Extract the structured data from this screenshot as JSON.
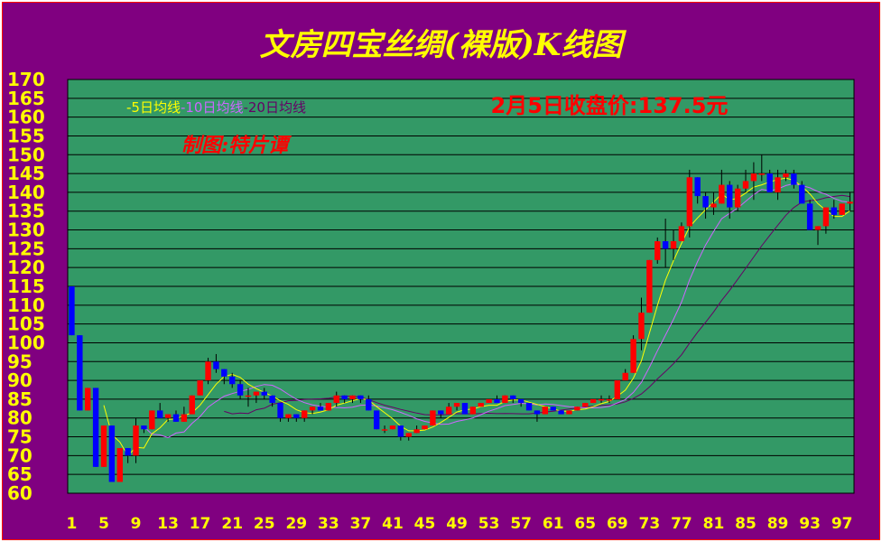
{
  "window": {
    "title": "文房四宝丝绸(裸版)K线图"
  },
  "colors": {
    "background": "#800080",
    "plot": "#339966",
    "up": "#ff0000",
    "down": "#0000ff",
    "ma5": "#ffff00",
    "ma10": "#cc66ff",
    "ma20": "#660066",
    "text": "#ffff00"
  },
  "chart_data": {
    "type": "candlestick",
    "title": "文房四宝丝绸(裸版)K线图",
    "subtitle": "2月5日收盘价:137.5元",
    "author": "制图:特片谭",
    "legend": {
      "ma5": "-5日均线",
      "ma10": "-10日均线",
      "ma20": "-20日均线",
      "placement": "top-left"
    },
    "ylim": [
      60,
      170
    ],
    "y_ticks": [
      "170",
      "165",
      "160",
      "155",
      "150",
      "145",
      "140",
      "135",
      "130",
      "125",
      "120",
      "115",
      "110",
      "105",
      "100",
      "95",
      "90",
      "85",
      "80",
      "75",
      "70",
      "65",
      "60"
    ],
    "x_ticks": [
      "1",
      "5",
      "9",
      "13",
      "17",
      "21",
      "25",
      "29",
      "33",
      "37",
      "41",
      "45",
      "49",
      "53",
      "57",
      "61",
      "65",
      "69",
      "73",
      "77",
      "81",
      "85",
      "89",
      "93",
      "97"
    ],
    "grid": true,
    "ohlc": [
      [
        115,
        115,
        102,
        102
      ],
      [
        102,
        102,
        82,
        82
      ],
      [
        82,
        88,
        82,
        88
      ],
      [
        88,
        88,
        67,
        67
      ],
      [
        67,
        78,
        67,
        78
      ],
      [
        78,
        78,
        63,
        63
      ],
      [
        63,
        72,
        63,
        72
      ],
      [
        72,
        72,
        68,
        70
      ],
      [
        70,
        80,
        68,
        78
      ],
      [
        78,
        78,
        76,
        77
      ],
      [
        77,
        82,
        77,
        82
      ],
      [
        82,
        84,
        80,
        80
      ],
      [
        80,
        81,
        79,
        81
      ],
      [
        81,
        82,
        79,
        79
      ],
      [
        79,
        83,
        79,
        81
      ],
      [
        81,
        86,
        81,
        86
      ],
      [
        86,
        90,
        86,
        90
      ],
      [
        90,
        96,
        89,
        95
      ],
      [
        95,
        97,
        92,
        93
      ],
      [
        93,
        93,
        89,
        91
      ],
      [
        91,
        92,
        88,
        89
      ],
      [
        89,
        90,
        85,
        86
      ],
      [
        86,
        88,
        83,
        86
      ],
      [
        86,
        87,
        84,
        87
      ],
      [
        87,
        88,
        85,
        86
      ],
      [
        86,
        86,
        83,
        84
      ],
      [
        84,
        84,
        79,
        80
      ],
      [
        80,
        81,
        79,
        81
      ],
      [
        81,
        81,
        79,
        80
      ],
      [
        80,
        82,
        79,
        82
      ],
      [
        82,
        83,
        81,
        83
      ],
      [
        83,
        84,
        82,
        82
      ],
      [
        82,
        84,
        82,
        84
      ],
      [
        84,
        87,
        83,
        86
      ],
      [
        86,
        86,
        84,
        85
      ],
      [
        85,
        86,
        84,
        86
      ],
      [
        86,
        86,
        84,
        85
      ],
      [
        85,
        86,
        82,
        82
      ],
      [
        82,
        82,
        77,
        77
      ],
      [
        77,
        78,
        76,
        77
      ],
      [
        77,
        78,
        77,
        78
      ],
      [
        78,
        78,
        74,
        75
      ],
      [
        75,
        76,
        74,
        76
      ],
      [
        76,
        78,
        76,
        77
      ],
      [
        77,
        78,
        77,
        78
      ],
      [
        78,
        82,
        78,
        82
      ],
      [
        82,
        82,
        80,
        81
      ],
      [
        81,
        84,
        81,
        83
      ],
      [
        83,
        84,
        82,
        84
      ],
      [
        84,
        84,
        81,
        81
      ],
      [
        81,
        83,
        81,
        83
      ],
      [
        83,
        84,
        83,
        84
      ],
      [
        84,
        85,
        84,
        85
      ],
      [
        85,
        86,
        84,
        84
      ],
      [
        84,
        86,
        84,
        86
      ],
      [
        86,
        86,
        84,
        85
      ],
      [
        85,
        85,
        83,
        84
      ],
      [
        84,
        84,
        82,
        82
      ],
      [
        82,
        82,
        79,
        81
      ],
      [
        81,
        83,
        81,
        83
      ],
      [
        83,
        83,
        82,
        82
      ],
      [
        82,
        82,
        81,
        81
      ],
      [
        81,
        82,
        81,
        82
      ],
      [
        82,
        83,
        82,
        83
      ],
      [
        83,
        84,
        83,
        84
      ],
      [
        84,
        85,
        84,
        85
      ],
      [
        85,
        86,
        84,
        85
      ],
      [
        85,
        86,
        84,
        85
      ],
      [
        85,
        90,
        85,
        90
      ],
      [
        90,
        93,
        90,
        92
      ],
      [
        92,
        102,
        92,
        101
      ],
      [
        101,
        112,
        98,
        108
      ],
      [
        108,
        122,
        108,
        122
      ],
      [
        122,
        128,
        121,
        127
      ],
      [
        127,
        133,
        120,
        125
      ],
      [
        125,
        130,
        122,
        127
      ],
      [
        127,
        132,
        127,
        131
      ],
      [
        131,
        146,
        128,
        144
      ],
      [
        144,
        144,
        137,
        139
      ],
      [
        139,
        140,
        133,
        136
      ],
      [
        136,
        140,
        134,
        137
      ],
      [
        137,
        146,
        137,
        142
      ],
      [
        142,
        143,
        133,
        136
      ],
      [
        136,
        142,
        135,
        141
      ],
      [
        141,
        146,
        140,
        143
      ],
      [
        143,
        148,
        138,
        145
      ],
      [
        145,
        150,
        143,
        145
      ],
      [
        145,
        146,
        140,
        140
      ],
      [
        140,
        146,
        138,
        144
      ],
      [
        144,
        146,
        143,
        145
      ],
      [
        145,
        146,
        141,
        142
      ],
      [
        142,
        143,
        138,
        137
      ],
      [
        137,
        138,
        130,
        130
      ],
      [
        130,
        131,
        126,
        131
      ],
      [
        131,
        136,
        129,
        136
      ],
      [
        136,
        138,
        133,
        134
      ],
      [
        134,
        137,
        134,
        137
      ],
      [
        137,
        140,
        135,
        137.5
      ]
    ],
    "ma5_start": 5,
    "ma10_start": 10,
    "ma20_start": 20
  }
}
